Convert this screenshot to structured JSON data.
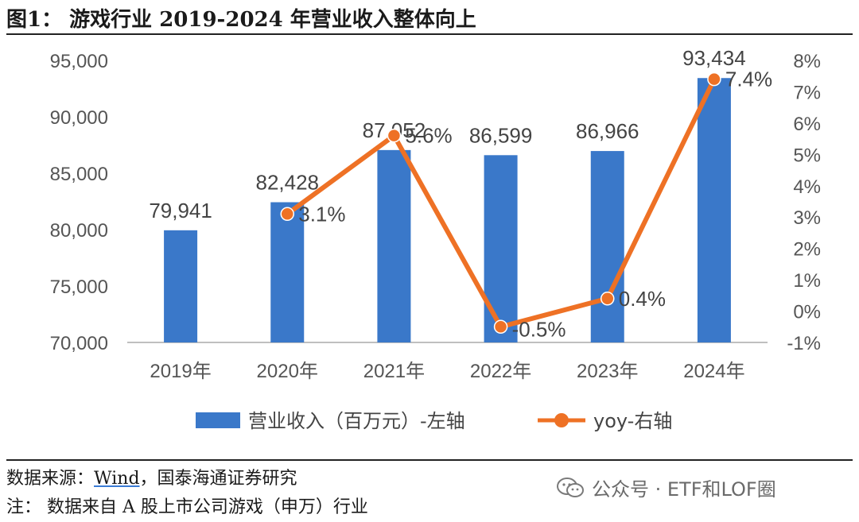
{
  "figure_title": "图1：  游戏行业 2019-2024 年营业收入整体向上",
  "source_prefix": "数据来源：",
  "source_wind": "Wind",
  "source_suffix": "，国泰海通证券研究",
  "note_text": "注：  数据来自 A 股上市公司游戏（申万）行业",
  "watermark": "公众号 · ETF和LOF圈",
  "colors": {
    "bar": "#3a78c9",
    "line": "#ee7125"
  },
  "chart_data": {
    "type": "bar",
    "categories": [
      "2019年",
      "2020年",
      "2021年",
      "2022年",
      "2023年",
      "2024年"
    ],
    "series": [
      {
        "name": "营业收入（百万元）-左轴",
        "type": "bar",
        "axis": "left",
        "values": [
          79941,
          82428,
          87052,
          86599,
          86966,
          93434
        ],
        "labels": [
          "79,941",
          "82,428",
          "87,052",
          "86,599",
          "86,966",
          "93,434"
        ]
      },
      {
        "name": "yoy-右轴",
        "type": "line",
        "axis": "right",
        "values": [
          null,
          3.1,
          5.6,
          -0.5,
          0.4,
          7.4
        ],
        "labels": [
          "",
          "3.1%",
          "5.6%",
          "-0.5%",
          "0.4%",
          "7.4%"
        ]
      }
    ],
    "y_left": {
      "ylim": [
        70000,
        95000
      ],
      "ticks": [
        "70,000",
        "75,000",
        "80,000",
        "85,000",
        "90,000",
        "95,000"
      ]
    },
    "y_right": {
      "ylim": [
        -1,
        8
      ],
      "ticks": [
        "-1%",
        "0%",
        "1%",
        "2%",
        "3%",
        "4%",
        "5%",
        "6%",
        "7%",
        "8%"
      ]
    },
    "grid": false,
    "legend_position": "bottom"
  }
}
